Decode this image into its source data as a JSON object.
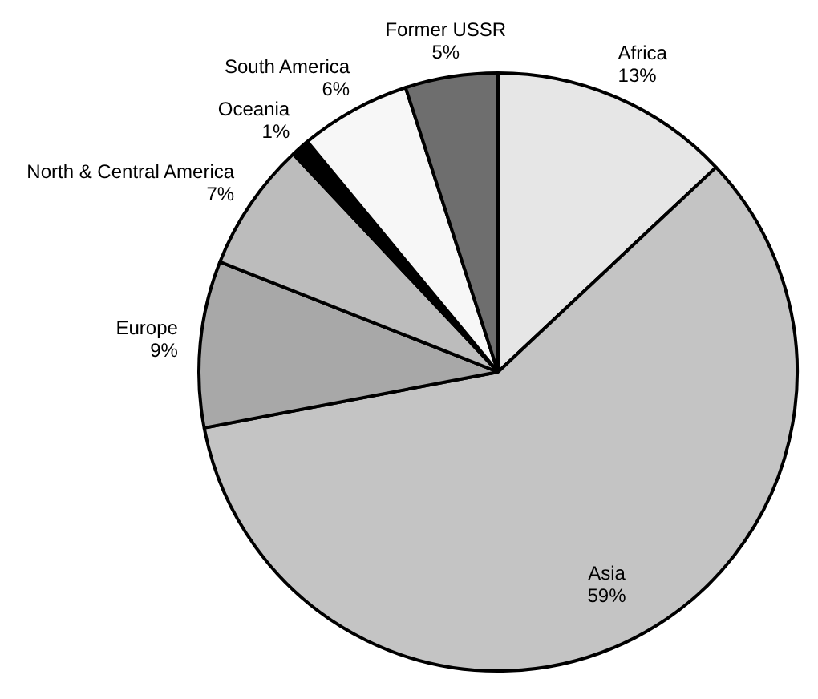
{
  "chart_data": {
    "type": "pie",
    "categories": [
      "Africa",
      "Asia",
      "Europe",
      "North & Central America",
      "Oceania",
      "South America",
      "Former USSR"
    ],
    "values": [
      13,
      59,
      9,
      7,
      1,
      6,
      5
    ],
    "value_labels": [
      "13%",
      "59%",
      "9%",
      "7%",
      "1%",
      "6%",
      "5%"
    ],
    "colors": [
      "#e6e6e6",
      "#c4c4c4",
      "#a8a8a8",
      "#bcbcbc",
      "#000000",
      "#f7f7f7",
      "#6e6e6e"
    ],
    "legend": false
  }
}
